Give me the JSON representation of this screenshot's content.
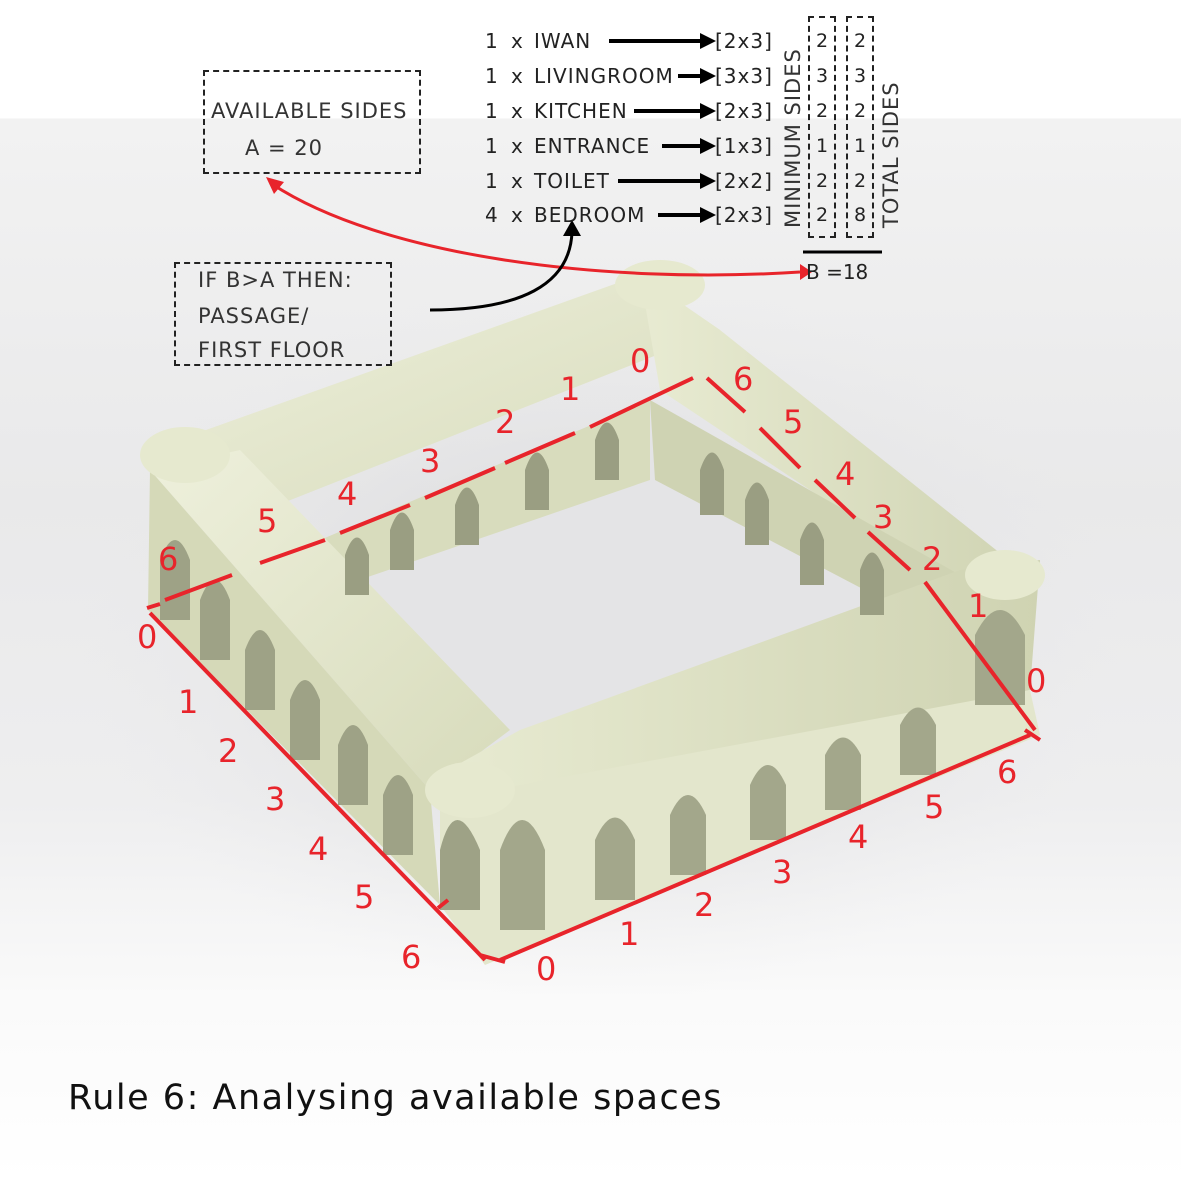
{
  "available": {
    "title": "AVAILABLE SIDES",
    "value": "A = 20"
  },
  "rule_box": {
    "line1": "IF B>A THEN:",
    "line2": "PASSAGE/",
    "line3": "FIRST FLOOR"
  },
  "rooms": [
    {
      "qty": "1",
      "x": "x",
      "name": "IWAN",
      "dim": "[2x3]",
      "min": "2",
      "total": "2"
    },
    {
      "qty": "1",
      "x": "x",
      "name": "LIVINGROOM",
      "dim": "[3x3]",
      "min": "3",
      "total": "3"
    },
    {
      "qty": "1",
      "x": "x",
      "name": "KITCHEN",
      "dim": "[2x3]",
      "min": "2",
      "total": "2"
    },
    {
      "qty": "1",
      "x": "x",
      "name": "ENTRANCE",
      "dim": "[1x3]",
      "min": "1",
      "total": "1"
    },
    {
      "qty": "1",
      "x": "x",
      "name": "TOILET",
      "dim": "[2x2]",
      "min": "2",
      "total": "2"
    },
    {
      "qty": "4",
      "x": "x",
      "name": "BEDROOM",
      "dim": "[2x3]",
      "min": "2",
      "total": "8"
    }
  ],
  "col_labels": {
    "minimum": "MINIMUM SIDES",
    "total": "TOTAL SIDES"
  },
  "b_total": "B =18",
  "edge_numbers": [
    "0",
    "1",
    "2",
    "3",
    "4",
    "5",
    "6"
  ],
  "caption": "Rule 6: Analysing available spaces",
  "colors": {
    "accent_red": "#e8242b",
    "model": "#dfe3c4",
    "model_shadow": "#b9bd9f"
  }
}
